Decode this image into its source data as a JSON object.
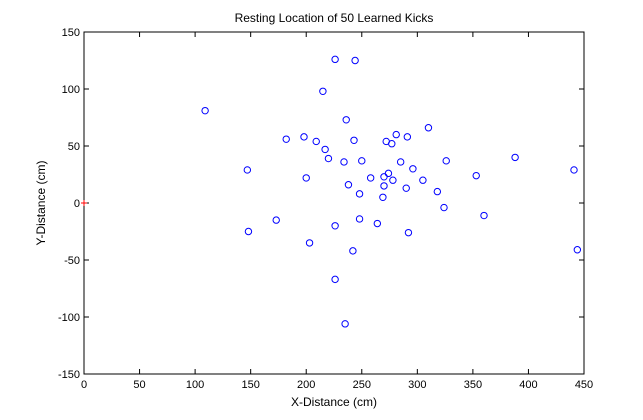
{
  "chart_data": {
    "type": "scatter",
    "title": "Resting Location of 50 Learned Kicks",
    "xlabel": "X-Distance (cm)",
    "ylabel": "Y-Distance (cm)",
    "xlim": [
      0,
      450
    ],
    "ylim": [
      -150,
      150
    ],
    "xticks": [
      0,
      50,
      100,
      150,
      200,
      250,
      300,
      350,
      400,
      450
    ],
    "yticks": [
      -150,
      -100,
      -50,
      0,
      50,
      100,
      150
    ],
    "grid": false,
    "series": [
      {
        "marker": "circle",
        "color": "#0000ff",
        "points": [
          [
            109,
            81
          ],
          [
            147,
            29
          ],
          [
            148,
            -25
          ],
          [
            173,
            -15
          ],
          [
            182,
            56
          ],
          [
            198,
            58
          ],
          [
            200,
            22
          ],
          [
            203,
            -35
          ],
          [
            209,
            54
          ],
          [
            215,
            98
          ],
          [
            217,
            47
          ],
          [
            220,
            39
          ],
          [
            226,
            126
          ],
          [
            226,
            -20
          ],
          [
            226,
            -67
          ],
          [
            234,
            36
          ],
          [
            235,
            -106
          ],
          [
            236,
            73
          ],
          [
            238,
            16
          ],
          [
            242,
            -42
          ],
          [
            243,
            55
          ],
          [
            244,
            125
          ],
          [
            248,
            8
          ],
          [
            248,
            -14
          ],
          [
            250,
            37
          ],
          [
            258,
            22
          ],
          [
            264,
            -18
          ],
          [
            269,
            5
          ],
          [
            270,
            23
          ],
          [
            270,
            15
          ],
          [
            272,
            54
          ],
          [
            274,
            26
          ],
          [
            277,
            52
          ],
          [
            278,
            20
          ],
          [
            281,
            60
          ],
          [
            285,
            36
          ],
          [
            290,
            13
          ],
          [
            291,
            58
          ],
          [
            292,
            -26
          ],
          [
            296,
            30
          ],
          [
            305,
            20
          ],
          [
            310,
            66
          ],
          [
            318,
            10
          ],
          [
            324,
            -4
          ],
          [
            326,
            37
          ],
          [
            353,
            24
          ],
          [
            360,
            -11
          ],
          [
            388,
            40
          ],
          [
            441,
            29
          ],
          [
            444,
            -41
          ]
        ]
      },
      {
        "marker": "plus",
        "color": "#ff0000",
        "points": [
          [
            0,
            0
          ]
        ]
      }
    ]
  }
}
